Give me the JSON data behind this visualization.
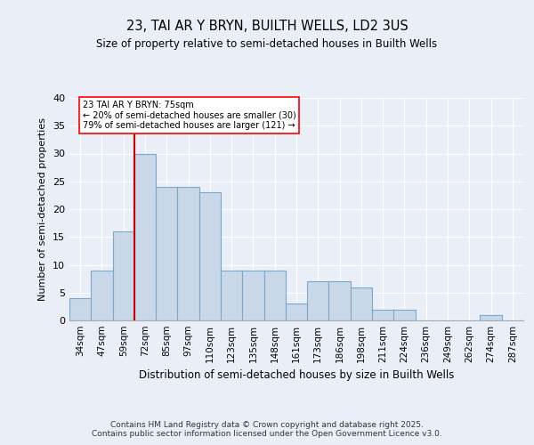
{
  "title": "23, TAI AR Y BRYN, BUILTH WELLS, LD2 3US",
  "subtitle": "Size of property relative to semi-detached houses in Builth Wells",
  "xlabel": "Distribution of semi-detached houses by size in Builth Wells",
  "ylabel": "Number of semi-detached properties",
  "bar_color": "#c8d8e8",
  "bar_edge_color": "#7aa8c8",
  "categories": [
    "34sqm",
    "47sqm",
    "59sqm",
    "72sqm",
    "85sqm",
    "97sqm",
    "110sqm",
    "123sqm",
    "135sqm",
    "148sqm",
    "161sqm",
    "173sqm",
    "186sqm",
    "198sqm",
    "211sqm",
    "224sqm",
    "236sqm",
    "249sqm",
    "262sqm",
    "274sqm",
    "287sqm"
  ],
  "values": [
    4,
    9,
    16,
    30,
    24,
    24,
    23,
    9,
    9,
    9,
    3,
    7,
    7,
    6,
    2,
    2,
    0,
    0,
    0,
    1,
    0
  ],
  "ylim": [
    0,
    40
  ],
  "yticks": [
    0,
    5,
    10,
    15,
    20,
    25,
    30,
    35,
    40
  ],
  "vline_index": 3,
  "vline_color": "#cc0000",
  "annotation_line1": "23 TAI AR Y BRYN: 75sqm",
  "annotation_line2": "← 20% of semi-detached houses are smaller (30)",
  "annotation_line3": "79% of semi-detached houses are larger (121) →",
  "footer_text": "Contains HM Land Registry data © Crown copyright and database right 2025.\nContains public sector information licensed under the Open Government Licence v3.0.",
  "background_color": "#eaeff7",
  "plot_bg_color": "#eaeff7",
  "grid_color": "#ffffff"
}
